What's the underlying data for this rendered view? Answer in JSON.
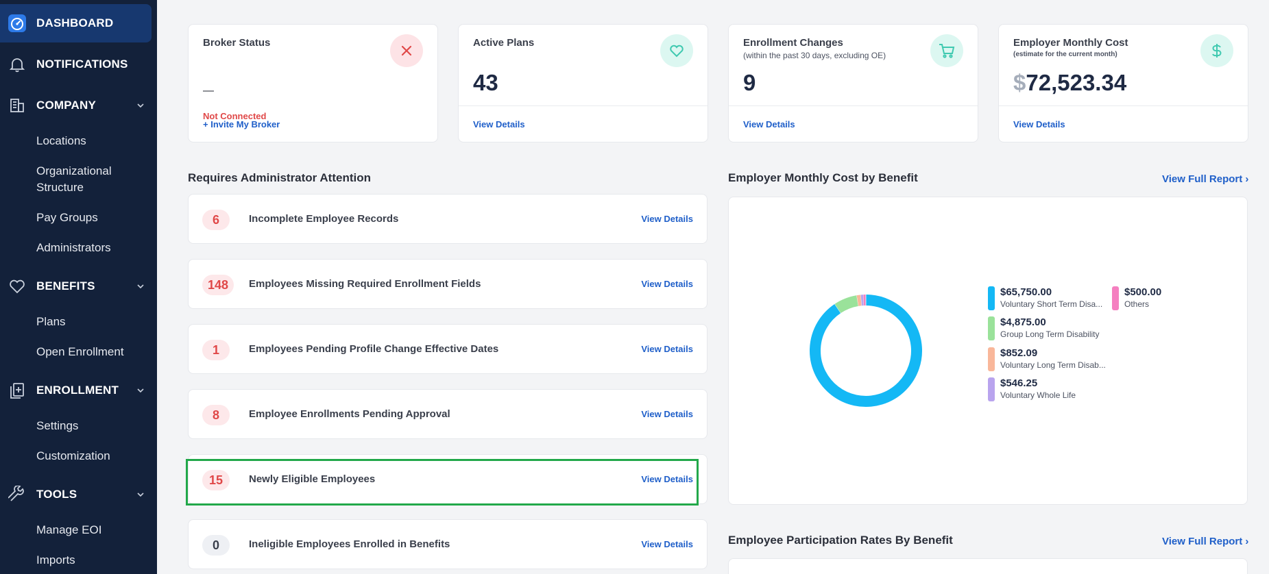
{
  "sidebar": {
    "dashboard": "DASHBOARD",
    "notifications": "NOTIFICATIONS",
    "company": {
      "label": "COMPANY",
      "items": [
        "Locations",
        "Organizational Structure",
        "Pay Groups",
        "Administrators"
      ]
    },
    "benefits": {
      "label": "BENEFITS",
      "items": [
        "Plans",
        "Open Enrollment"
      ]
    },
    "enrollment": {
      "label": "ENROLLMENT",
      "items": [
        "Settings",
        "Customization"
      ]
    },
    "tools": {
      "label": "TOOLS",
      "items": [
        "Manage EOI",
        "Imports"
      ]
    }
  },
  "stats": {
    "broker": {
      "title": "Broker Status",
      "dash": "—",
      "status": "Not Connected",
      "link": "+ Invite My Broker",
      "icon": "close-icon"
    },
    "active_plans": {
      "title": "Active Plans",
      "value": "43",
      "link": "View Details",
      "icon": "heart-icon"
    },
    "enrollment_changes": {
      "title": "Enrollment Changes",
      "subtitle": "(within the past 30 days, excluding OE)",
      "value": "9",
      "link": "View Details",
      "icon": "cart-icon"
    },
    "employer_cost": {
      "title": "Employer Monthly Cost",
      "subtitle": "(estimate for the current month)",
      "currency": "$",
      "value": "72,523.34",
      "link": "View Details",
      "icon": "dollar-icon"
    }
  },
  "attention": {
    "title": "Requires Administrator Attention",
    "items": [
      {
        "count": "6",
        "label": "Incomplete Employee Records",
        "link": "View Details"
      },
      {
        "count": "148",
        "label": "Employees Missing Required Enrollment Fields",
        "link": "View Details"
      },
      {
        "count": "1",
        "label": "Employees Pending Profile Change Effective Dates",
        "link": "View Details"
      },
      {
        "count": "8",
        "label": "Employee Enrollments Pending Approval",
        "link": "View Details"
      },
      {
        "count": "15",
        "label": "Newly Eligible Employees",
        "link": "View Details"
      },
      {
        "count": "0",
        "label": "Ineligible Employees Enrolled in Benefits",
        "link": "View Details"
      }
    ]
  },
  "cost_chart": {
    "title": "Employer Monthly Cost by Benefit",
    "full_report": "View Full Report ›"
  },
  "participation": {
    "title": "Employee Participation Rates By Benefit",
    "full_report": "View Full Report ›"
  },
  "chart_data": {
    "type": "pie",
    "donut": true,
    "categories": [
      "Voluntary Short Term Disa...",
      "Group Long Term Disability",
      "Voluntary Long Term Disab...",
      "Voluntary Whole Life",
      "Others"
    ],
    "labels": [
      "$65,750.00",
      "$4,875.00",
      "$852.09",
      "$546.25",
      "$500.00"
    ],
    "values": [
      65750.0,
      4875.0,
      852.09,
      546.25,
      500.0
    ],
    "colors": [
      "#14b8f5",
      "#9ae29a",
      "#f9b79a",
      "#b9a4ee",
      "#f57fc0"
    ],
    "legend": "right"
  }
}
